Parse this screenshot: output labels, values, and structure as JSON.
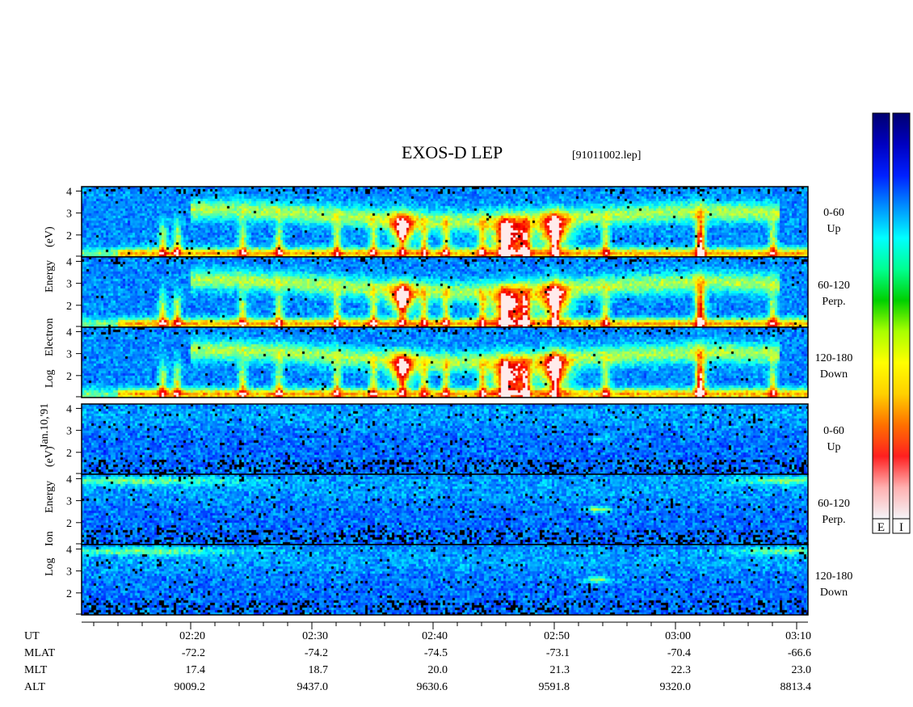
{
  "header": {
    "title": "EXOS-D LEP",
    "file": "[91011002.lep]"
  },
  "side_labels": {
    "date": "Jan.10,'91",
    "electron": [
      "Log",
      "Electron",
      "Energy",
      "(eV)"
    ],
    "ion": [
      "Log",
      "Ion",
      "Energy",
      "(eV)"
    ]
  },
  "panels": [
    {
      "species": "Electron",
      "pitch": "0-60",
      "dir": "Up"
    },
    {
      "species": "Electron",
      "pitch": "60-120",
      "dir": "Perp."
    },
    {
      "species": "Electron",
      "pitch": "120-180",
      "dir": "Down"
    },
    {
      "species": "Ion",
      "pitch": "0-60",
      "dir": "Up"
    },
    {
      "species": "Ion",
      "pitch": "60-120",
      "dir": "Perp."
    },
    {
      "species": "Ion",
      "pitch": "120-180",
      "dir": "Down"
    }
  ],
  "colorbars": [
    {
      "label": "E"
    },
    {
      "label": "I"
    }
  ],
  "colorbar_colors": [
    "#f4f4f8",
    "#ffb0b0",
    "#ff2020",
    "#ff7000",
    "#ffd000",
    "#ffff00",
    "#a8ff00",
    "#00d000",
    "#00ff90",
    "#00ffff",
    "#0090ff",
    "#0020ff",
    "#0000c0",
    "#000070"
  ],
  "footer": {
    "row_labels": [
      "UT",
      "MLAT",
      "MLT",
      "ALT"
    ],
    "columns": [
      {
        "ut": "02:20",
        "mlat": "-72.2",
        "mlt": "17.4",
        "alt": "9009.2"
      },
      {
        "ut": "02:30",
        "mlat": "-74.2",
        "mlt": "18.7",
        "alt": "9437.0"
      },
      {
        "ut": "02:40",
        "mlat": "-74.5",
        "mlt": "20.0",
        "alt": "9630.6"
      },
      {
        "ut": "02:50",
        "mlat": "-73.1",
        "mlt": "21.3",
        "alt": "9591.8"
      },
      {
        "ut": "03:00",
        "mlat": "-70.4",
        "mlt": "22.3",
        "alt": "9320.0"
      },
      {
        "ut": "03:10",
        "mlat": "-66.6",
        "mlt": "23.0",
        "alt": "8813.4"
      }
    ]
  },
  "chart_data": {
    "type": "heatmap",
    "title": "EXOS-D LEP",
    "xlabel": "UT",
    "ylabel": "Log Energy (eV)",
    "x_ticks": [
      "02:20",
      "02:30",
      "02:40",
      "02:50",
      "03:00",
      "03:10"
    ],
    "y_ticks": [
      2,
      3,
      4
    ],
    "ylim": [
      1,
      4.2
    ],
    "series": [
      {
        "name": "Electron 0-60 Up"
      },
      {
        "name": "Electron 60-120 Perp."
      },
      {
        "name": "Electron 120-180 Down"
      },
      {
        "name": "Ion 0-60 Up"
      },
      {
        "name": "Ion 60-120 Perp."
      },
      {
        "name": "Ion 120-180 Down"
      }
    ]
  }
}
